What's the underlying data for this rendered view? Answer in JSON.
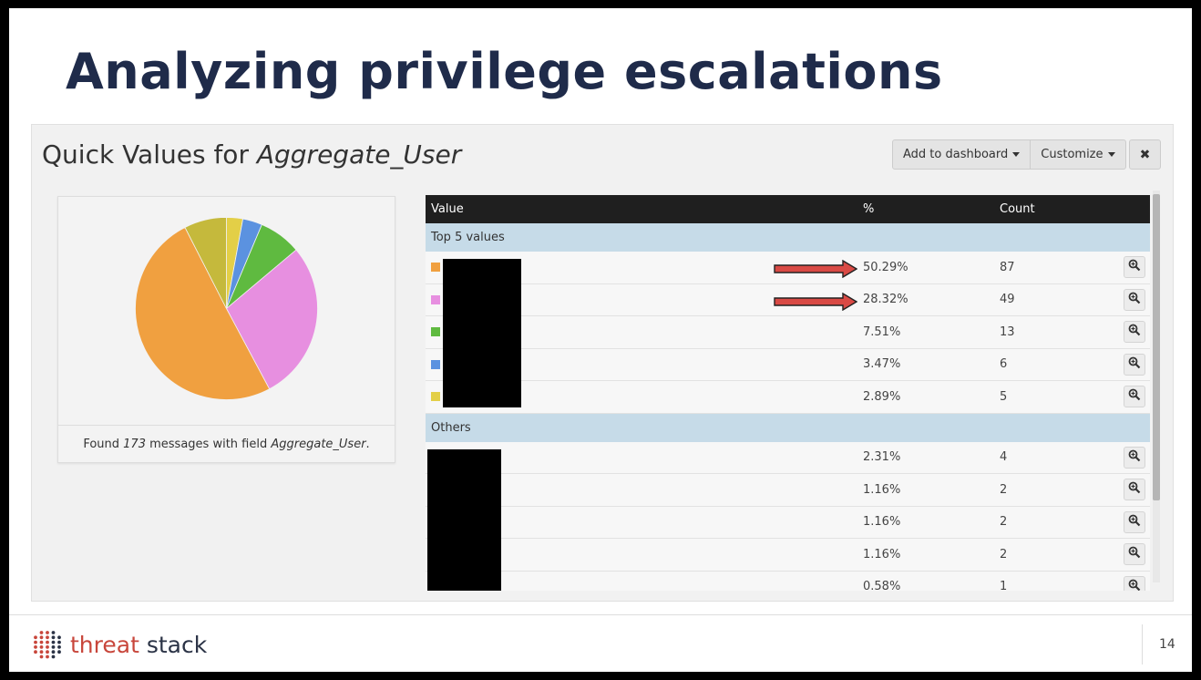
{
  "slide": {
    "title": "Analyzing privilege escalations",
    "page_number": "14"
  },
  "panel": {
    "title_prefix": "Quick Values for ",
    "field_name": "Aggregate_User",
    "add_to_dashboard": "Add to dashboard",
    "customize": "Customize",
    "close_icon": "close-icon",
    "close_glyph": "✖"
  },
  "pie": {
    "footer_prefix": "Found ",
    "message_count": "173",
    "footer_middle": " messages with field ",
    "footer_field": "Aggregate_User",
    "footer_suffix": "."
  },
  "table": {
    "headers": {
      "value": "Value",
      "pct": "%",
      "count": "Count"
    },
    "top_group_label": "Top 5 values",
    "others_group_label": "Others",
    "top_rows": [
      {
        "pct": "50.29%",
        "count": "87",
        "color": "#f0a040",
        "fraction": 0.5029
      },
      {
        "pct": "28.32%",
        "count": "49",
        "color": "#e78fe0",
        "fraction": 0.2832
      },
      {
        "pct": "7.51%",
        "count": "13",
        "color": "#5fba40",
        "fraction": 0.0751
      },
      {
        "pct": "3.47%",
        "count": "6",
        "color": "#5b92e0",
        "fraction": 0.0347
      },
      {
        "pct": "2.89%",
        "count": "5",
        "color": "#e3cf47",
        "fraction": 0.0289
      }
    ],
    "others_rows": [
      {
        "pct": "2.31%",
        "count": "4"
      },
      {
        "pct": "1.16%",
        "count": "2"
      },
      {
        "pct": "1.16%",
        "count": "2"
      },
      {
        "pct": "1.16%",
        "count": "2"
      },
      {
        "pct": "0.58%",
        "count": "1"
      }
    ],
    "others_pie_color": "#c5b93c"
  },
  "footer": {
    "logo_word1": "threat",
    "logo_word2": "stack"
  }
}
